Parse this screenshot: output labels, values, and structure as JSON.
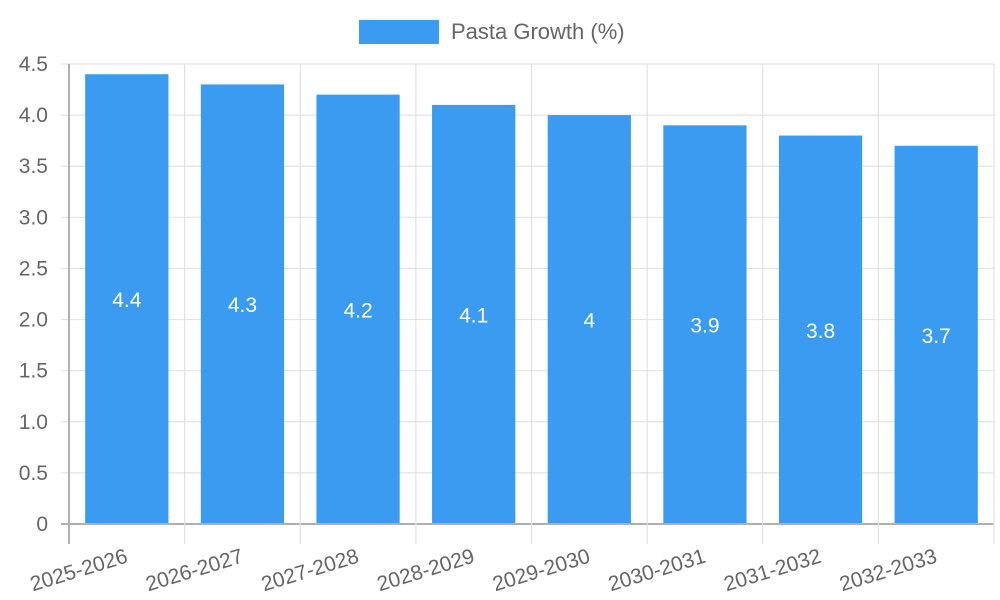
{
  "chart_data": {
    "type": "bar",
    "title": "",
    "xlabel": "",
    "ylabel": "",
    "categories": [
      "2025-2026",
      "2026-2027",
      "2027-2028",
      "2028-2029",
      "2029-2030",
      "2030-2031",
      "2031-2032",
      "2032-2033"
    ],
    "series": [
      {
        "name": "Pasta Growth (%)",
        "values": [
          4.4,
          4.3,
          4.2,
          4.1,
          4,
          3.9,
          3.8,
          3.7
        ],
        "color": "#3a9bf0"
      }
    ],
    "data_labels": [
      "4.4",
      "4.3",
      "4.2",
      "4.1",
      "4",
      "3.9",
      "3.8",
      "3.7"
    ],
    "ylim": [
      0,
      4.5
    ],
    "yticks": [
      "0",
      "0.5",
      "1.0",
      "1.5",
      "2.0",
      "2.5",
      "3.0",
      "3.5",
      "4.0",
      "4.5"
    ],
    "grid": true,
    "legend_position": "top"
  },
  "legend": {
    "label": "Pasta Growth (%)"
  }
}
